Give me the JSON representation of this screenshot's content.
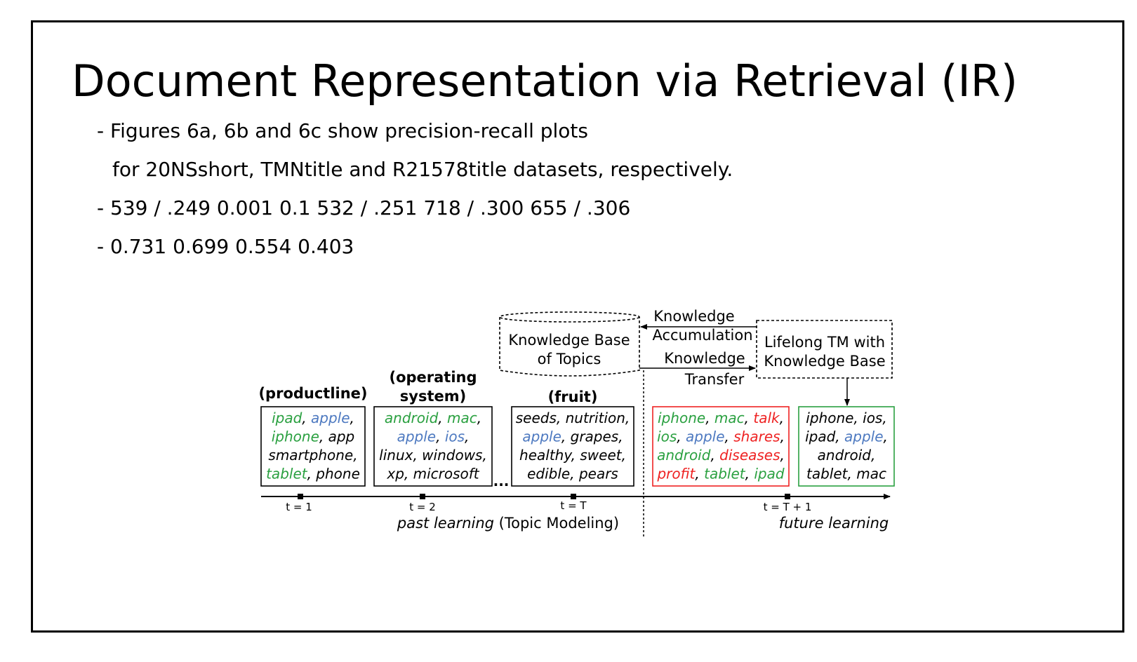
{
  "slide": {
    "title": "Document Representation via Retrieval (IR)",
    "bullets": [
      "- Figures 6a, 6b and 6c show precision-recall plots",
      "for 20NSshort, TMNtitle and R21578title datasets, respectively.",
      "- 539 / .249 0.001 0.1 532 / .251 718 / .300 655 / .306",
      "- 0.731 0.699 0.554 0.403"
    ]
  },
  "diagram": {
    "kb_label": [
      "Knowledge Base",
      "of Topics"
    ],
    "lifelong_label": [
      "Lifelong TM with",
      "Knowledge Base"
    ],
    "accumulation_label": [
      "Knowledge",
      "Accumulation"
    ],
    "transfer_label": [
      "Knowledge",
      "Transfer"
    ],
    "ellipsis": "...",
    "colors": {
      "green": "#2aa040",
      "blue": "#4d79c0",
      "red": "#ee2222",
      "black": "#000000"
    },
    "topics": [
      {
        "title": [
          "(productline)"
        ],
        "lines": [
          [
            [
              "ipad",
              "g"
            ],
            [
              ", ",
              "k"
            ],
            [
              "apple",
              "b"
            ],
            [
              ",",
              "k"
            ]
          ],
          [
            [
              "iphone",
              "g"
            ],
            [
              ", app",
              "k"
            ]
          ],
          [
            [
              "smartphone,",
              "k"
            ]
          ],
          [
            [
              "tablet",
              "g"
            ],
            [
              ", phone",
              "k"
            ]
          ]
        ]
      },
      {
        "title": [
          "(operating",
          "system)"
        ],
        "lines": [
          [
            [
              "android",
              "g"
            ],
            [
              ", ",
              "k"
            ],
            [
              "mac",
              "g"
            ],
            [
              ",",
              "k"
            ]
          ],
          [
            [
              "apple",
              "b"
            ],
            [
              ", ",
              "k"
            ],
            [
              "ios",
              "b"
            ],
            [
              ",",
              "k"
            ]
          ],
          [
            [
              "linux, windows,",
              "k"
            ]
          ],
          [
            [
              "xp, microsoft",
              "k"
            ]
          ]
        ]
      },
      {
        "title": [
          "(fruit)"
        ],
        "lines": [
          [
            [
              "seeds, nutrition,",
              "k"
            ]
          ],
          [
            [
              "apple",
              "b"
            ],
            [
              ", grapes,",
              "k"
            ]
          ],
          [
            [
              "healthy, sweet,",
              "k"
            ]
          ],
          [
            [
              "edible, pears",
              "k"
            ]
          ]
        ]
      },
      {
        "title": [],
        "lines": [
          [
            [
              "iphone",
              "g"
            ],
            [
              ", ",
              "k"
            ],
            [
              "mac",
              "g"
            ],
            [
              ", ",
              "k"
            ],
            [
              "talk",
              "r"
            ],
            [
              ",",
              "k"
            ]
          ],
          [
            [
              "ios",
              "g"
            ],
            [
              ", ",
              "k"
            ],
            [
              "apple",
              "b"
            ],
            [
              ", ",
              "k"
            ],
            [
              "shares",
              "r"
            ],
            [
              ",",
              "k"
            ]
          ],
          [
            [
              "android",
              "g"
            ],
            [
              ", ",
              "k"
            ],
            [
              "diseases",
              "r"
            ],
            [
              ",",
              "k"
            ]
          ],
          [
            [
              "profit",
              "r"
            ],
            [
              ", ",
              "k"
            ],
            [
              "tablet",
              "g"
            ],
            [
              ", ",
              "k"
            ],
            [
              "ipad",
              "g"
            ]
          ]
        ]
      },
      {
        "title": [],
        "lines": [
          [
            [
              "iphone, ios,",
              "k"
            ]
          ],
          [
            [
              "ipad, ",
              "k"
            ],
            [
              "apple",
              "b"
            ],
            [
              ",",
              "k"
            ]
          ],
          [
            [
              "android,",
              "k"
            ]
          ],
          [
            [
              "tablet, mac",
              "k"
            ]
          ]
        ]
      }
    ],
    "timeline": {
      "ticks": [
        "t = 1",
        "t = 2",
        "t = T",
        "t = T + 1"
      ],
      "past_prefix": "past learning",
      "past_suffix": " (Topic Modeling)",
      "future": "future learning"
    }
  }
}
